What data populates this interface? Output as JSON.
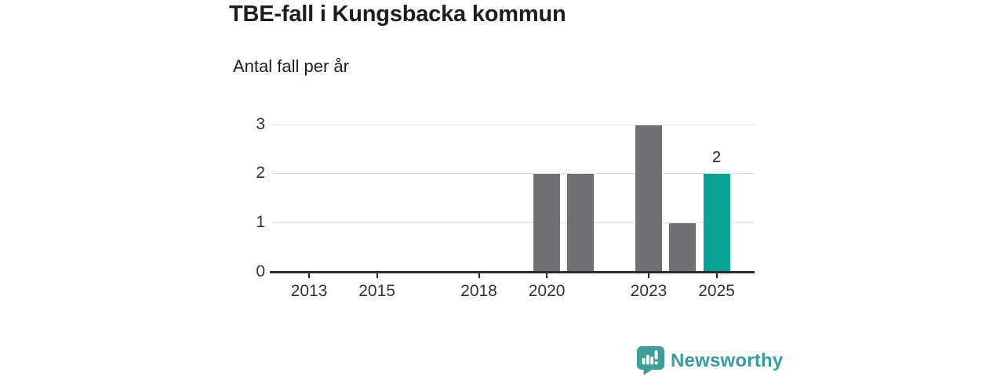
{
  "chart_data": {
    "type": "bar",
    "title": "TBE-fall i Kungsbacka kommun",
    "subtitle": "Antal fall per år",
    "categories": [
      2012,
      2013,
      2014,
      2015,
      2016,
      2017,
      2018,
      2019,
      2020,
      2021,
      2022,
      2023,
      2024,
      2025
    ],
    "values": [
      0,
      0,
      0,
      0,
      0,
      0,
      0,
      0,
      2,
      2,
      0,
      3,
      1,
      2
    ],
    "x_tick_labels": [
      "2013",
      "2015",
      "2018",
      "2020",
      "2023",
      "2025"
    ],
    "yticks": [
      "0",
      "1",
      "2",
      "3"
    ],
    "ylim": [
      0,
      3
    ],
    "grid": true,
    "legend": "none",
    "highlight": {
      "category": 2025,
      "value_label": "2"
    },
    "colors": {
      "bar": "#717175",
      "highlight_bar": "#07a296",
      "grid_line": "#e2e2e2",
      "axis_line": "#2d2d2d",
      "tick_text": "#333333",
      "title_text": "#1d1d1b"
    }
  },
  "branding": {
    "name": "Newsworthy",
    "icon": "bar-chart-speech-bubble-icon",
    "icon_color": "#3f9e9c",
    "text_color": "#399a9b"
  }
}
